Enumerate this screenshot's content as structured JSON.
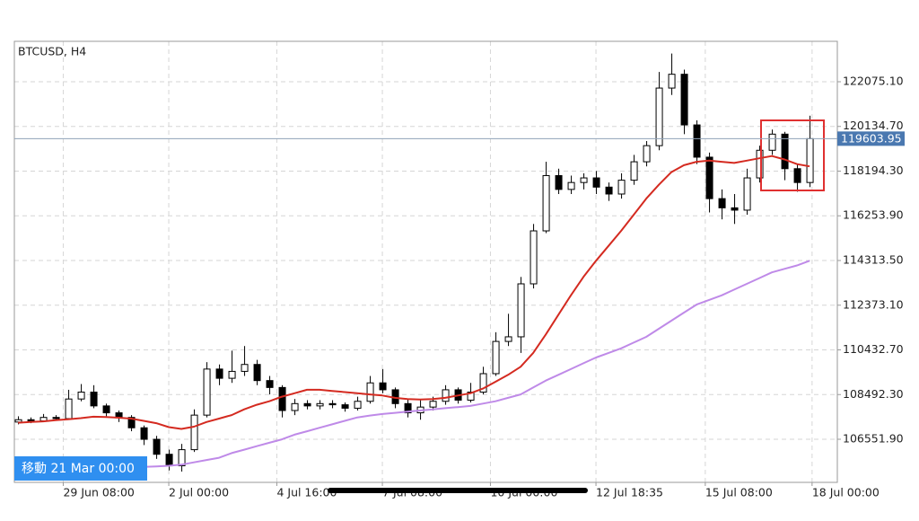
{
  "chart_data": {
    "type": "candlestick",
    "title": "BTCUSD, H4",
    "cursor_label": "移動 21 Mar 00:00",
    "open": [
      107300,
      107400,
      107350,
      107500,
      107450,
      108300,
      108600,
      108000,
      107700,
      107500,
      107050,
      106550,
      105900,
      105400,
      106100,
      107600,
      109600,
      109200,
      109500,
      109800,
      109100,
      108800,
      107800,
      108100,
      108000,
      108100,
      108050,
      107900,
      108200,
      109000,
      108700,
      108100,
      107700,
      107950,
      108200,
      108700,
      108250,
      108600,
      109400,
      110800,
      111000,
      113300,
      115600,
      118000,
      117400,
      117700,
      117900,
      117500,
      117200,
      117800,
      118600,
      119300,
      121800,
      122400,
      120200,
      118800,
      117000,
      116600,
      116500,
      117900,
      119100,
      119800,
      118300,
      117700
    ],
    "high": [
      107550,
      107500,
      107650,
      107600,
      108700,
      108950,
      108900,
      108100,
      107800,
      107600,
      107150,
      106700,
      106100,
      106350,
      107850,
      109900,
      109800,
      110400,
      110600,
      110000,
      109300,
      108900,
      108300,
      108250,
      108250,
      108250,
      108150,
      108400,
      109300,
      109600,
      108800,
      108300,
      108250,
      108400,
      108900,
      108800,
      109000,
      109700,
      111200,
      112000,
      113600,
      115900,
      118600,
      118300,
      118000,
      118100,
      118200,
      117700,
      118100,
      118900,
      119500,
      122500,
      123300,
      122600,
      120400,
      119000,
      117400,
      117200,
      118300,
      119300,
      120000,
      119900,
      118500,
      120600
    ],
    "low": [
      107200,
      107250,
      107300,
      107350,
      107400,
      108200,
      107900,
      107550,
      107300,
      106900,
      106300,
      105700,
      105200,
      105150,
      106000,
      107500,
      108900,
      109000,
      109300,
      108900,
      108500,
      107500,
      107600,
      107850,
      107850,
      107900,
      107750,
      107800,
      108100,
      108550,
      107900,
      107500,
      107400,
      107800,
      108050,
      108100,
      108150,
      108500,
      109300,
      110600,
      110300,
      113100,
      115500,
      117200,
      117200,
      117400,
      117200,
      116900,
      117000,
      117600,
      118400,
      119100,
      121500,
      119800,
      118500,
      116400,
      116100,
      115900,
      116300,
      117700,
      118900,
      117800,
      117300,
      117500
    ],
    "close": [
      107400,
      107350,
      107500,
      107450,
      108300,
      108600,
      108000,
      107700,
      107500,
      107050,
      106550,
      105900,
      105400,
      106100,
      107600,
      109600,
      109200,
      109500,
      109800,
      109100,
      108800,
      107800,
      108100,
      108000,
      108100,
      108050,
      107900,
      108200,
      109000,
      108700,
      108100,
      107700,
      107950,
      108200,
      108700,
      108250,
      108600,
      109400,
      110800,
      111000,
      113300,
      115600,
      118000,
      117400,
      117700,
      117900,
      117500,
      117200,
      117800,
      118600,
      119300,
      121800,
      122400,
      120200,
      118800,
      117000,
      116600,
      116500,
      117900,
      119100,
      119800,
      118300,
      117700,
      119603.95
    ],
    "up_color": "#ffffff",
    "down_color": "#000000",
    "lines": [
      {
        "color": "#d42a20",
        "values": [
          107270,
          107300,
          107330,
          107380,
          107420,
          107470,
          107530,
          107520,
          107490,
          107450,
          107350,
          107250,
          107080,
          107000,
          107100,
          107300,
          107450,
          107600,
          107850,
          108050,
          108200,
          108400,
          108550,
          108700,
          108700,
          108650,
          108600,
          108550,
          108500,
          108450,
          108350,
          108300,
          108280,
          108300,
          108350,
          108450,
          108550,
          108750,
          109050,
          109350,
          109700,
          110300,
          111100,
          111950,
          112800,
          113600,
          114300,
          114950,
          115600,
          116300,
          117000,
          117600,
          118150,
          118450,
          118600,
          118650,
          118600,
          118550,
          118650,
          118750,
          118850,
          118700,
          118500,
          118400
        ]
      },
      {
        "color": "#bf8ae8",
        "values": [
          null,
          null,
          null,
          null,
          null,
          null,
          null,
          null,
          null,
          null,
          105350,
          105370,
          105400,
          105450,
          105550,
          105650,
          105750,
          105950,
          106100,
          106250,
          106400,
          106550,
          106750,
          106900,
          107050,
          107200,
          107350,
          107500,
          107580,
          107650,
          107700,
          107750,
          107800,
          107850,
          107900,
          107950,
          108000,
          108100,
          108200,
          108350,
          108500,
          108800,
          109100,
          109350,
          109600,
          109850,
          110100,
          110300,
          110500,
          110750,
          111000,
          111350,
          111700,
          112050,
          112400,
          112600,
          112800,
          113050,
          113300,
          113550,
          113800,
          113950,
          114100,
          114300
        ]
      }
    ],
    "current_price": {
      "value": 119603.95,
      "label": "119603.95"
    },
    "xlim": [
      -0.29,
      65.21
    ],
    "xticks": [
      {
        "value": 3.6,
        "label": "29 Jun 08:00"
      },
      {
        "value": 12,
        "label": "2 Jul 00:00"
      },
      {
        "value": 20.6,
        "label": "4 Jul 16:00"
      },
      {
        "value": 29,
        "label": "7 Jul 08:00"
      },
      {
        "value": 37.6,
        "label": "10 Jul 00:00"
      },
      {
        "value": 46,
        "label": "12 Jul 18:35"
      },
      {
        "value": 54.7,
        "label": "15 Jul 08:00"
      },
      {
        "value": 63.2,
        "label": "18 Jul 00:00"
      }
    ],
    "ylim": [
      104680,
      123830
    ],
    "yticks": [
      {
        "value": 106551.9,
        "label": "106551.90"
      },
      {
        "value": 108492.3,
        "label": "108492.30"
      },
      {
        "value": 110432.7,
        "label": "110432.70"
      },
      {
        "value": 112373.1,
        "label": "112373.10"
      },
      {
        "value": 114313.5,
        "label": "114313.50"
      },
      {
        "value": 116253.9,
        "label": "116253.90"
      },
      {
        "value": 118194.3,
        "label": "118194.30"
      },
      {
        "value": 120134.7,
        "label": "120134.70"
      },
      {
        "value": 122075.1,
        "label": "122075.10"
      }
    ],
    "grid": true
  }
}
